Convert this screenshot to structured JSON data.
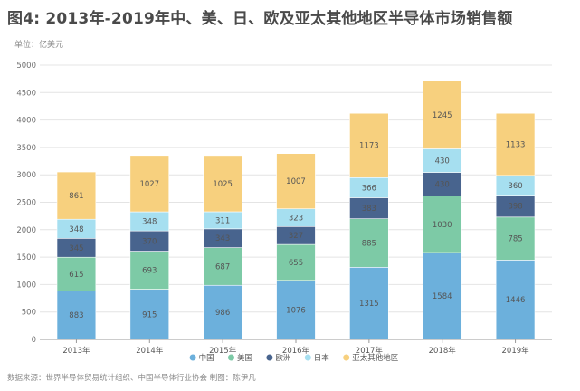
{
  "title": "图4: 2013年-2019年中、美、日、欧及亚太其他地区半导体市场销售额",
  "unit_label": "单位：亿美元",
  "source": "数据来源：世界半导体贸易统计组织、中国半导体行业协会 制图：陈伊凡",
  "chart_data": {
    "type": "bar",
    "stacked": true,
    "categories": [
      "2013年",
      "2014年",
      "2015年",
      "2016年",
      "2017年",
      "2018年",
      "2019年"
    ],
    "ylim": [
      0,
      5000
    ],
    "yticks": [
      0,
      500,
      1000,
      1500,
      2000,
      2500,
      3000,
      3500,
      4000,
      4500,
      5000
    ],
    "grid": true,
    "legend_position": "bottom",
    "series": [
      {
        "name": "中国",
        "color": "#6cb0dc",
        "values": [
          883,
          915,
          986,
          1076,
          1315,
          1584,
          1446
        ],
        "labels": [
          "883",
          "915",
          "986",
          "1076",
          "1315",
          "1584",
          "1446"
        ]
      },
      {
        "name": "美国",
        "color": "#7dcaa6",
        "values": [
          615,
          693,
          687,
          655,
          885,
          1030,
          785
        ],
        "labels": [
          "615",
          "693",
          "687",
          "655",
          "885",
          "1030",
          "785"
        ]
      },
      {
        "name": "欧洲",
        "color": "#48648e",
        "values": [
          345,
          370,
          343,
          327,
          383,
          430,
          398
        ],
        "labels": [
          "345",
          "370",
          "343",
          "327",
          "383",
          "430",
          "398"
        ]
      },
      {
        "name": "日本",
        "color": "#a6dff0",
        "values": [
          348,
          348,
          311,
          323,
          366,
          430,
          360
        ],
        "labels": [
          "348",
          "348",
          "311",
          "323",
          "366",
          "430",
          "360"
        ]
      },
      {
        "name": "亚太其他地区",
        "color": "#f7d07e",
        "values": [
          861,
          1027,
          1025,
          1007,
          1173,
          1245,
          1133
        ],
        "labels": [
          "861",
          "1027",
          "1025",
          "1007",
          "1173",
          "1245",
          "1133"
        ]
      }
    ]
  }
}
